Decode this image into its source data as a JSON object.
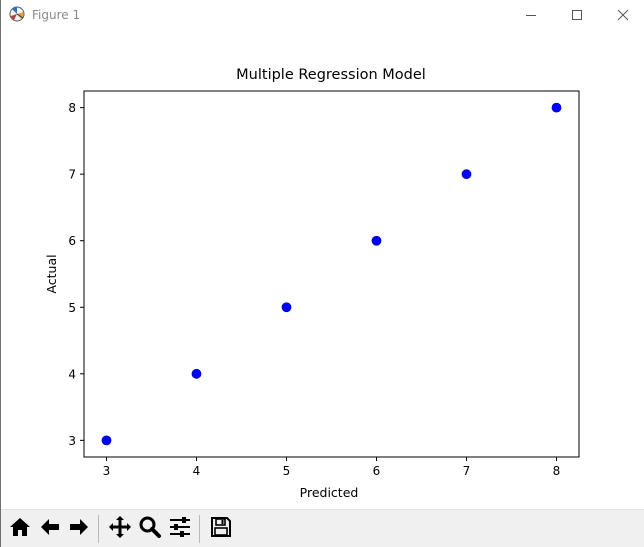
{
  "window": {
    "title": "Figure 1",
    "icons": {
      "app": "matplotlib-icon",
      "minimize": "minimize-icon",
      "maximize": "maximize-icon",
      "close": "close-icon"
    }
  },
  "toolbar": {
    "buttons": [
      {
        "name": "home-button",
        "icon": "home-icon"
      },
      {
        "name": "back-button",
        "icon": "arrow-left-icon"
      },
      {
        "name": "forward-button",
        "icon": "arrow-right-icon"
      },
      {
        "name": "pan-button",
        "icon": "move-icon"
      },
      {
        "name": "zoom-button",
        "icon": "magnifier-icon"
      },
      {
        "name": "configure-subplots-button",
        "icon": "sliders-icon"
      },
      {
        "name": "save-button",
        "icon": "floppy-disk-icon"
      }
    ]
  },
  "chart_data": {
    "type": "scatter",
    "title": "Multiple Regression Model",
    "xlabel": "Predicted",
    "ylabel": "Actual",
    "xlim": [
      2.75,
      8.25
    ],
    "ylim": [
      2.75,
      8.25
    ],
    "xticks": [
      3,
      4,
      5,
      6,
      7,
      8
    ],
    "yticks": [
      3,
      4,
      5,
      6,
      7,
      8
    ],
    "grid": false,
    "marker_color": "#0000ff",
    "x": [
      3,
      4,
      5,
      6,
      7,
      8
    ],
    "y": [
      3,
      4,
      5,
      6,
      7,
      8
    ]
  }
}
